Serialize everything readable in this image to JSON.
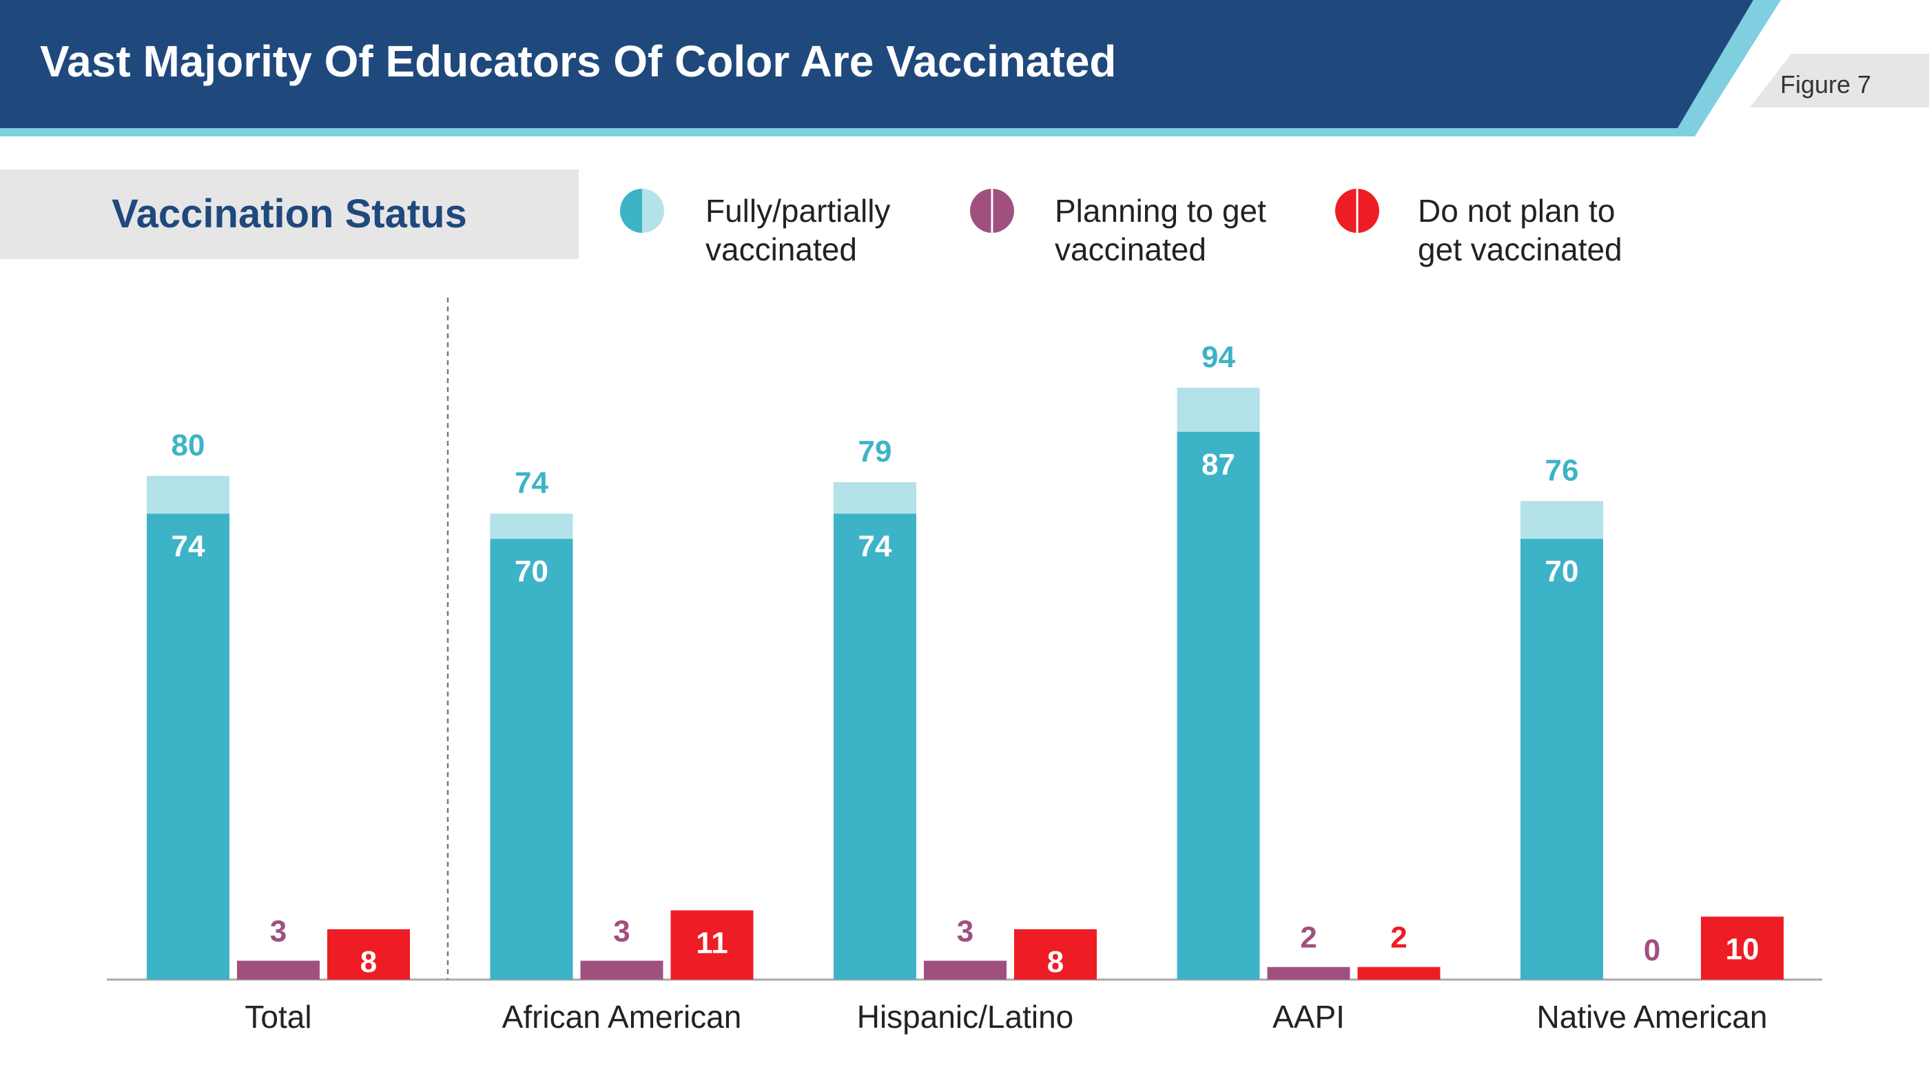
{
  "header": {
    "title": "Vast Majority Of Educators Of Color Are Vaccinated",
    "figure_label": "Figure 7"
  },
  "section": {
    "label": "Vaccination Status"
  },
  "legend": [
    {
      "label": "Fully/partially\nvaccinated",
      "color": "#3db3c7",
      "light_color": "#b3e2e8",
      "icon": "half-circle-icon"
    },
    {
      "label": "Planning to get\nvaccinated",
      "color": "#a0507f",
      "light_color": "#a0507f",
      "icon": "half-circle-icon"
    },
    {
      "label": "Do not plan to\nget vaccinated",
      "color": "#ee1c25",
      "light_color": "#ee1c25",
      "icon": "half-circle-icon"
    }
  ],
  "colors": {
    "header_dark": "#1f497d",
    "header_accent": "#7fcfe0",
    "vaccinated_partial": "#b3e2e8",
    "vaccinated": "#3db3c7",
    "planning": "#a0507f",
    "not_planning": "#ee1c25"
  },
  "chart_data": {
    "type": "bar",
    "title": "Vast Majority Of Educators Of Color Are Vaccinated",
    "categories": [
      "Total",
      "African American",
      "Hispanic/Latino",
      "AAPI",
      "Native American"
    ],
    "ylim": [
      0,
      100
    ],
    "grid": false,
    "legend_position": "top",
    "series": [
      {
        "name": "Fully/partially vaccinated",
        "values": [
          80,
          74,
          79,
          94,
          76
        ],
        "inner_values": [
          74,
          70,
          74,
          87,
          70
        ]
      },
      {
        "name": "Planning to get vaccinated",
        "values": [
          3,
          3,
          3,
          2,
          0
        ]
      },
      {
        "name": "Do not plan to get vaccinated",
        "values": [
          8,
          11,
          8,
          2,
          10
        ]
      }
    ]
  }
}
